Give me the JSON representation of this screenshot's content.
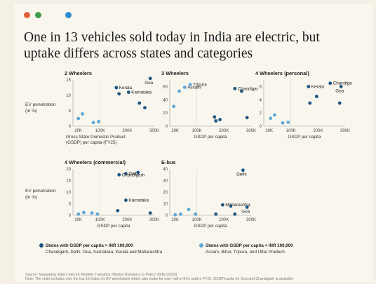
{
  "colors": {
    "dark": "#1a5583",
    "light": "#5ea6d6",
    "dot1": "#e0623a",
    "dot2": "#3f9c4a",
    "dot3": "#2e8bd0"
  },
  "title": "One in 13 vehicles sold today in India are electric, but uptake differs across states and categories",
  "y_axis_label": "EV penetration (in %)",
  "x_axis_label_first": "Gross State Domestic Product (GSDP) per capita (FY25)",
  "x_axis_label": "GSDP per capita",
  "legend": {
    "dark_title": "States with GSDP per capita > INR 100,000",
    "dark_members": "Chandigarh, Delhi, Goa, Karnataka, Kerala and Maharashtra",
    "light_title": "States with GSDP per capita < INR 100,000",
    "light_members": "Assam, Bihar, Tripura, and Uttar Pradesh"
  },
  "source": "Source: Navigating India's Electric Mobility Transition: Market Dynamics to Policy Shifts (2025)",
  "note": "Note: The chart includes only the top 10 states by EV penetration which also make for over half of EVs sold in FY25. GSDP/capita for Goa and Chandigarh is available",
  "chart_data": [
    {
      "type": "scatter",
      "title": "2 Wheelers",
      "xlim": [
        0,
        300000
      ],
      "ylim": [
        0,
        15
      ],
      "xticks": [
        "20K",
        "100K",
        "200K",
        "300K"
      ],
      "yticks": [
        "0",
        "5",
        "10",
        "15"
      ],
      "points": [
        {
          "x": 20000,
          "y": 2.5,
          "group": "low"
        },
        {
          "x": 35000,
          "y": 4,
          "group": "low"
        },
        {
          "x": 75000,
          "y": 1.2,
          "group": "low"
        },
        {
          "x": 95000,
          "y": 1.5,
          "group": "low"
        },
        {
          "x": 160000,
          "y": 12.5,
          "group": "high",
          "label": "Kerala"
        },
        {
          "x": 205000,
          "y": 11,
          "group": "high",
          "label": "Karnataka"
        },
        {
          "x": 170000,
          "y": 10.5,
          "group": "high"
        },
        {
          "x": 285000,
          "y": 15.5,
          "group": "high",
          "label": "Goa"
        },
        {
          "x": 245000,
          "y": 7.5,
          "group": "high"
        },
        {
          "x": 265000,
          "y": 6,
          "group": "high"
        }
      ]
    },
    {
      "type": "scatter",
      "title": "3 Wheelers",
      "xlim": [
        0,
        300000
      ],
      "ylim": [
        0,
        70
      ],
      "xticks": [
        "20K",
        "100K",
        "200K",
        "300K"
      ],
      "yticks": [
        "0",
        "20",
        "40",
        "60"
      ],
      "points": [
        {
          "x": 15000,
          "y": 30,
          "group": "low"
        },
        {
          "x": 35000,
          "y": 53,
          "group": "low"
        },
        {
          "x": 55000,
          "y": 59,
          "group": "low",
          "label": "Assam"
        },
        {
          "x": 75000,
          "y": 63,
          "group": "low",
          "label": "Tripura"
        },
        {
          "x": 240000,
          "y": 57,
          "group": "high",
          "label": "Chandigarh"
        },
        {
          "x": 265000,
          "y": 53,
          "group": "high"
        },
        {
          "x": 165000,
          "y": 14,
          "group": "high"
        },
        {
          "x": 185000,
          "y": 10,
          "group": "high"
        },
        {
          "x": 170000,
          "y": 8,
          "group": "high"
        },
        {
          "x": 285000,
          "y": 13,
          "group": "high"
        }
      ]
    },
    {
      "type": "scatter",
      "title": "4 Wheelers (personal)",
      "xlim": [
        0,
        300000
      ],
      "ylim": [
        0,
        7
      ],
      "xticks": [
        "20K",
        "100K",
        "200K",
        "300K"
      ],
      "yticks": [
        "0",
        "2",
        "4",
        "6"
      ],
      "points": [
        {
          "x": 25000,
          "y": 1.2,
          "group": "low"
        },
        {
          "x": 40000,
          "y": 1.7,
          "group": "low"
        },
        {
          "x": 70000,
          "y": 0.5,
          "group": "low"
        },
        {
          "x": 90000,
          "y": 0.6,
          "group": "low"
        },
        {
          "x": 165000,
          "y": 6,
          "group": "high",
          "label": "Kerala"
        },
        {
          "x": 245000,
          "y": 6.5,
          "group": "high",
          "label": "Chandigarh"
        },
        {
          "x": 285000,
          "y": 6,
          "group": "high",
          "label": "Goa"
        },
        {
          "x": 195000,
          "y": 4.5,
          "group": "high"
        },
        {
          "x": 170000,
          "y": 3.5,
          "group": "high"
        },
        {
          "x": 280000,
          "y": 3.5,
          "group": "high"
        }
      ]
    },
    {
      "type": "scatter",
      "title": "4 Wheelers (commercial)",
      "xlim": [
        0,
        300000
      ],
      "ylim": [
        0,
        20
      ],
      "xticks": [
        "20K",
        "100K",
        "200K",
        "300K"
      ],
      "yticks": [
        "0",
        "5",
        "10",
        "15",
        "20"
      ],
      "points": [
        {
          "x": 20000,
          "y": 0.5,
          "group": "low"
        },
        {
          "x": 40000,
          "y": 1.2,
          "group": "low"
        },
        {
          "x": 70000,
          "y": 1,
          "group": "low"
        },
        {
          "x": 90000,
          "y": 0.5,
          "group": "low"
        },
        {
          "x": 195000,
          "y": 18,
          "group": "high",
          "label": "Delhi"
        },
        {
          "x": 170000,
          "y": 17.5,
          "group": "high",
          "label": "Chandigarh"
        },
        {
          "x": 195000,
          "y": 6.5,
          "group": "high",
          "label": "Karnataka"
        },
        {
          "x": 165000,
          "y": 2,
          "group": "high"
        },
        {
          "x": 285000,
          "y": 1,
          "group": "high"
        },
        {
          "x": 240000,
          "y": 18.5,
          "group": "high"
        }
      ]
    },
    {
      "type": "scatter",
      "title": "E-bus",
      "xlim": [
        0,
        300000
      ],
      "ylim": [
        0,
        40
      ],
      "xticks": [
        "20K",
        "100K",
        "200K",
        "300K"
      ],
      "yticks": [
        "0",
        "10",
        "20",
        "30",
        "40"
      ],
      "points": [
        {
          "x": 20000,
          "y": 0.5,
          "group": "low"
        },
        {
          "x": 40000,
          "y": 1,
          "group": "low"
        },
        {
          "x": 70000,
          "y": 5,
          "group": "low"
        },
        {
          "x": 95000,
          "y": 1,
          "group": "low"
        },
        {
          "x": 270000,
          "y": 39,
          "group": "high",
          "label": "Delhi"
        },
        {
          "x": 195000,
          "y": 9,
          "group": "high",
          "label": "Maharashtra"
        },
        {
          "x": 285000,
          "y": 7,
          "group": "high",
          "label": "Goa"
        },
        {
          "x": 225000,
          "y": 8,
          "group": "high"
        },
        {
          "x": 170000,
          "y": 1,
          "group": "high"
        },
        {
          "x": 240000,
          "y": 1,
          "group": "high"
        }
      ]
    }
  ]
}
